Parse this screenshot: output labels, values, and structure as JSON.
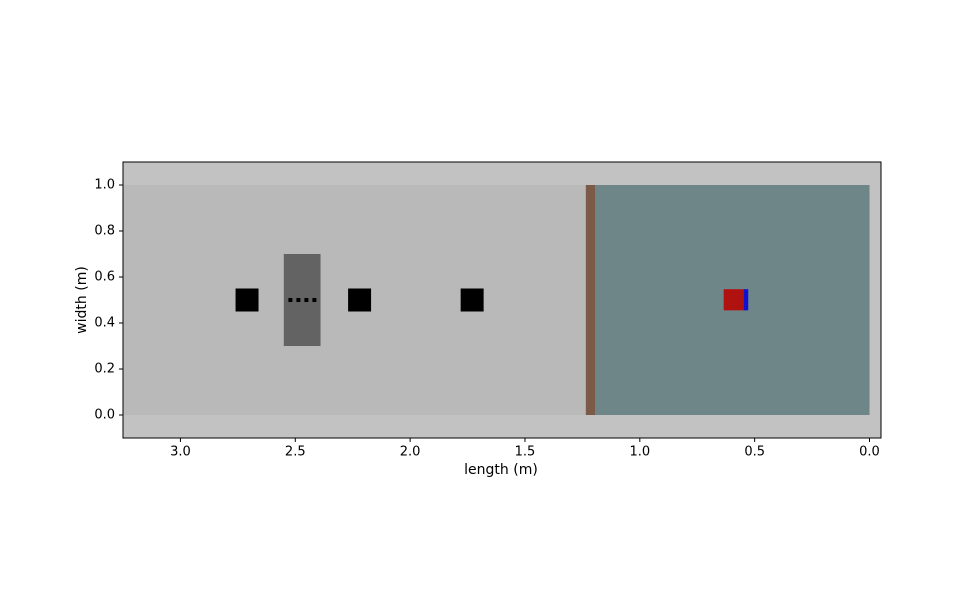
{
  "chart_data": {
    "type": "rect",
    "x_label": "length (m)",
    "y_label": "width (m)",
    "xlim": [
      3.25,
      -0.05
    ],
    "ylim": [
      -0.1,
      1.1
    ],
    "xticks": [
      {
        "value": 3,
        "label": "3.0"
      },
      2.5,
      {
        "value": 2,
        "label": "2.0"
      },
      1.5,
      {
        "value": 1,
        "label": "1.0"
      },
      0.5,
      {
        "value": 0,
        "label": "0.0"
      }
    ],
    "yticks": [
      {
        "value": 0,
        "label": "0.0"
      },
      0.2,
      0.4,
      0.6,
      0.8,
      {
        "value": 1,
        "label": "1.0"
      }
    ],
    "background": "#c2c2c2",
    "shapes": [
      {
        "x": [
          3.25,
          0
        ],
        "y": [
          0,
          1
        ],
        "color": "#b9b9b9"
      },
      {
        "x": [
          1.2,
          0
        ],
        "y": [
          0,
          1
        ],
        "color": "#6f8689"
      },
      {
        "x": [
          1.235,
          1.195
        ],
        "y": [
          0,
          1
        ],
        "color": "#7b5a47"
      },
      {
        "x": [
          2.76,
          2.66
        ],
        "y": [
          0.45,
          0.55
        ],
        "color": "#000000"
      },
      {
        "x": [
          2.55,
          2.39
        ],
        "y": [
          0.3,
          0.7
        ],
        "color": "#636363"
      },
      {
        "x": [
          2.27,
          2.17
        ],
        "y": [
          0.45,
          0.55
        ],
        "color": "#000000"
      },
      {
        "x": [
          1.78,
          1.68
        ],
        "y": [
          0.45,
          0.55
        ],
        "color": "#000000"
      },
      {
        "x": [
          0.635,
          0.548
        ],
        "y": [
          0.455,
          0.547
        ],
        "color": "#b0120f"
      },
      {
        "x": [
          0.548,
          0.528
        ],
        "y": [
          0.455,
          0.547
        ],
        "color": "#1010d0"
      }
    ],
    "dotted_line": {
      "x": [
        2.53,
        2.4
      ],
      "y": [
        0.5,
        0.5
      ],
      "color": "#000000"
    }
  }
}
